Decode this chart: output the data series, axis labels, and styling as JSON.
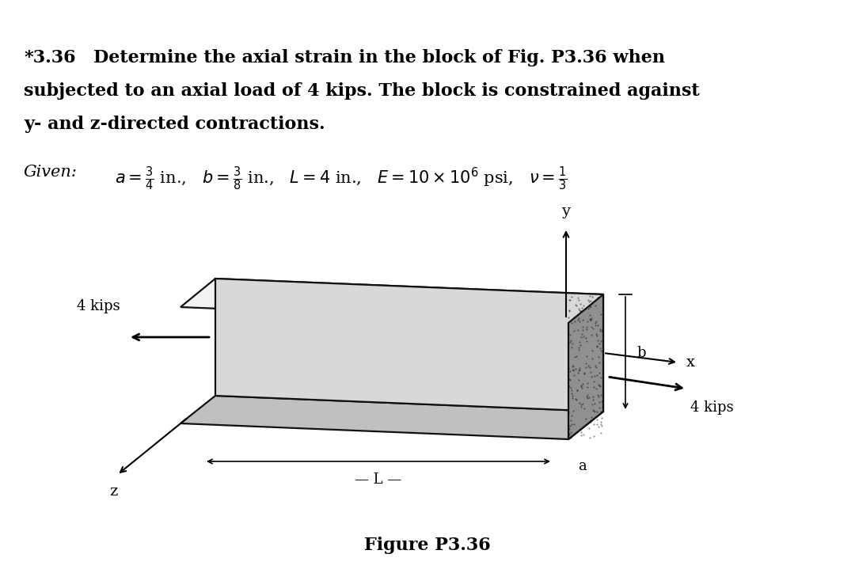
{
  "title_number": "*3.36",
  "title_line1": "Determine the axial strain in the block of Fig. P3.36 when",
  "title_line2": "subjected to an axial load of 4 kips. The block is constrained against",
  "title_line3": "y- and z-directed contractions.",
  "given_label": "Given:",
  "figure_label": "Figure P3.36",
  "background_color": "#ffffff",
  "text_color": "#000000",
  "load_label": "4 kips",
  "block_face_color": "#d8d8d8",
  "block_top_color": "#f2f2f2",
  "block_bottom_color": "#c0c0c0",
  "block_right_face_color": "#909090",
  "block_edge_color": "#111111",
  "block_lw": 1.6,
  "arrow_lw": 1.8,
  "font_size_title": 16,
  "font_size_given": 15,
  "font_size_label": 13,
  "font_size_fig": 16
}
